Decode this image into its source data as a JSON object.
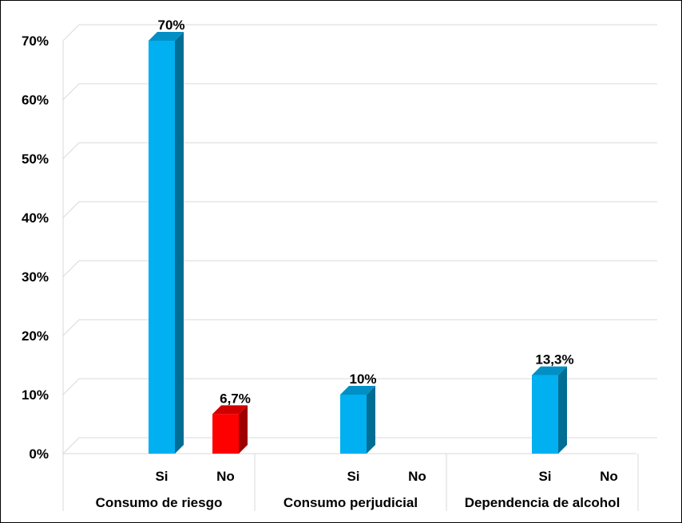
{
  "chart_data": {
    "type": "bar",
    "title": "",
    "xlabel": "",
    "ylabel": "",
    "ylim": [
      0,
      70
    ],
    "y_ticks": [
      "0%",
      "10%",
      "20%",
      "30%",
      "40%",
      "50%",
      "60%",
      "70%"
    ],
    "grid": true,
    "legend": "none",
    "style": "3d-column",
    "groups": [
      {
        "label": "Consumo de riesgo",
        "bars": [
          {
            "category": "Si",
            "value": 70,
            "label": "70%",
            "color": "#00B0F0"
          },
          {
            "category": "No",
            "value": 6.7,
            "label": "6,7%",
            "color": "#FF0000"
          }
        ]
      },
      {
        "label": "Consumo perjudicial",
        "bars": [
          {
            "category": "Si",
            "value": 10,
            "label": "10%",
            "color": "#00B0F0"
          },
          {
            "category": "No",
            "value": 0,
            "label": "",
            "color": "#FF0000"
          }
        ]
      },
      {
        "label": "Dependencia de alcohol",
        "bars": [
          {
            "category": "Si",
            "value": 13.3,
            "label": "13,3%",
            "color": "#00B0F0"
          },
          {
            "category": "No",
            "value": 0,
            "label": "",
            "color": "#FF0000"
          }
        ]
      }
    ]
  }
}
